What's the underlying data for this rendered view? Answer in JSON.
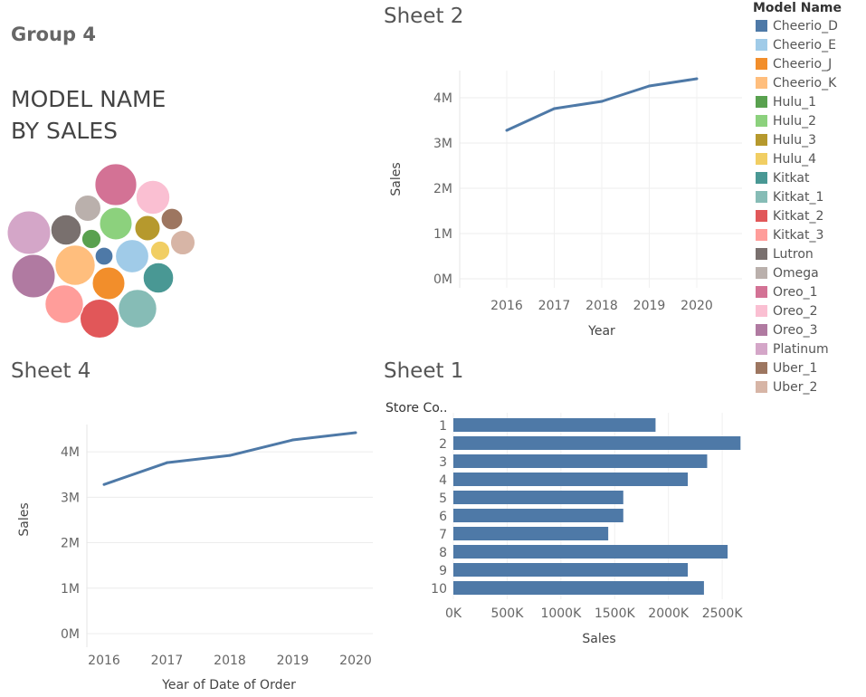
{
  "dashboard": {
    "group_title": "Group 4",
    "bubble_title_line1": "MODEL NAME",
    "bubble_title_line2": "BY SALES",
    "sheet2_title": "Sheet 2",
    "sheet4_title": "Sheet 4",
    "sheet1_title": "Sheet 1"
  },
  "legend": {
    "title": "Model Name",
    "items": [
      {
        "label": "Cheerio_D",
        "color": "#4e79a7"
      },
      {
        "label": "Cheerio_E",
        "color": "#a0cbe8"
      },
      {
        "label": "Cheerio_J",
        "color": "#f28e2b"
      },
      {
        "label": "Cheerio_K",
        "color": "#ffbe7d"
      },
      {
        "label": "Hulu_1",
        "color": "#59a14f"
      },
      {
        "label": "Hulu_2",
        "color": "#8cd17d"
      },
      {
        "label": "Hulu_3",
        "color": "#b6992d"
      },
      {
        "label": "Hulu_4",
        "color": "#f1ce63"
      },
      {
        "label": "Kitkat",
        "color": "#499894"
      },
      {
        "label": "Kitkat_1",
        "color": "#86bcb6"
      },
      {
        "label": "Kitkat_2",
        "color": "#e15759"
      },
      {
        "label": "Kitkat_3",
        "color": "#ff9d9a"
      },
      {
        "label": "Lutron",
        "color": "#79706e"
      },
      {
        "label": "Omega",
        "color": "#bab0ac"
      },
      {
        "label": "Oreo_1",
        "color": "#d37295"
      },
      {
        "label": "Oreo_2",
        "color": "#fabfd2"
      },
      {
        "label": "Oreo_3",
        "color": "#b07aa1"
      },
      {
        "label": "Platinum",
        "color": "#d4a6c8"
      },
      {
        "label": "Uber_1",
        "color": "#9d7660"
      },
      {
        "label": "Uber_2",
        "color": "#d7b5a6"
      }
    ]
  },
  "chart_data": [
    {
      "id": "sheet2",
      "type": "line",
      "title": "Sheet 2",
      "xlabel": "Year",
      "ylabel": "Sales",
      "x": [
        2016,
        2017,
        2018,
        2019,
        2020
      ],
      "y_ticks": [
        "0M",
        "1M",
        "2M",
        "3M",
        "4M"
      ],
      "ylim": [
        0,
        4400000
      ],
      "series": [
        {
          "values": [
            3280000,
            3760000,
            3920000,
            4260000,
            4420000
          ],
          "color": "#4e79a7"
        }
      ]
    },
    {
      "id": "sheet4",
      "type": "line",
      "title": "Sheet 4",
      "xlabel": "Year of Date of Order",
      "ylabel": "Sales",
      "x": [
        2016,
        2017,
        2018,
        2019,
        2020
      ],
      "y_ticks": [
        "0M",
        "1M",
        "2M",
        "3M",
        "4M"
      ],
      "ylim": [
        0,
        4400000
      ],
      "series": [
        {
          "values": [
            3280000,
            3760000,
            3920000,
            4260000,
            4420000
          ],
          "color": "#4e79a7"
        }
      ]
    },
    {
      "id": "sheet1",
      "type": "bar",
      "orientation": "horizontal",
      "title": "Sheet 1",
      "category_header": "Store Co..",
      "xlabel": "Sales",
      "categories": [
        "1",
        "2",
        "3",
        "4",
        "5",
        "6",
        "7",
        "8",
        "9",
        "10"
      ],
      "values": [
        1880000,
        2670000,
        2360000,
        2180000,
        1580000,
        1580000,
        1440000,
        2550000,
        2180000,
        2330000
      ],
      "x_ticks": [
        "0K",
        "500K",
        "1000K",
        "1500K",
        "2000K",
        "2500K"
      ],
      "xlim": [
        0,
        2600000
      ],
      "color": "#4e79a7"
    },
    {
      "id": "bubbles",
      "type": "packed-bubble",
      "title": "MODEL NAME BY SALES",
      "items": [
        {
          "label": "Cheerio_D",
          "value": 0.07,
          "color": "#4e79a7"
        },
        {
          "label": "Cheerio_E",
          "value": 0.24,
          "color": "#a0cbe8"
        },
        {
          "label": "Cheerio_J",
          "value": 0.23,
          "color": "#f28e2b"
        },
        {
          "label": "Cheerio_K",
          "value": 0.35,
          "color": "#ffbe7d"
        },
        {
          "label": "Hulu_1",
          "value": 0.08,
          "color": "#59a14f"
        },
        {
          "label": "Hulu_2",
          "value": 0.23,
          "color": "#8cd17d"
        },
        {
          "label": "Hulu_3",
          "value": 0.14,
          "color": "#b6992d"
        },
        {
          "label": "Hulu_4",
          "value": 0.08,
          "color": "#f1ce63"
        },
        {
          "label": "Kitkat",
          "value": 0.2,
          "color": "#499894"
        },
        {
          "label": "Kitkat_1",
          "value": 0.32,
          "color": "#86bcb6"
        },
        {
          "label": "Kitkat_2",
          "value": 0.33,
          "color": "#e15759"
        },
        {
          "label": "Kitkat_3",
          "value": 0.32,
          "color": "#ff9d9a"
        },
        {
          "label": "Lutron",
          "value": 0.2,
          "color": "#79706e"
        },
        {
          "label": "Omega",
          "value": 0.15,
          "color": "#bab0ac"
        },
        {
          "label": "Oreo_1",
          "value": 0.38,
          "color": "#d37295"
        },
        {
          "label": "Oreo_2",
          "value": 0.25,
          "color": "#fabfd2"
        },
        {
          "label": "Oreo_3",
          "value": 0.41,
          "color": "#b07aa1"
        },
        {
          "label": "Platinum",
          "value": 0.41,
          "color": "#d4a6c8"
        },
        {
          "label": "Uber_1",
          "value": 0.1,
          "color": "#9d7660"
        },
        {
          "label": "Uber_2",
          "value": 0.13,
          "color": "#d7b5a6"
        }
      ]
    }
  ]
}
